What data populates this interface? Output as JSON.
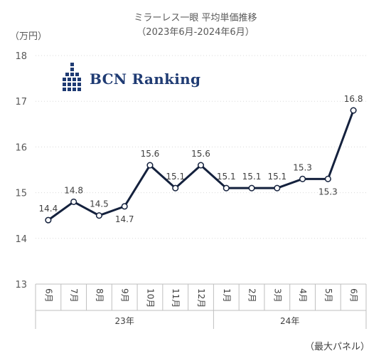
{
  "header": {
    "title": "ミラーレス一眼 平均単価推移",
    "subtitle": "（2023年6月-2024年6月）",
    "unit": "（万円）",
    "footnote": "（最大パネル）"
  },
  "logo": {
    "text": "BCN Ranking",
    "color": "#1f3b73"
  },
  "chart_data": {
    "type": "line",
    "categories": [
      "6月",
      "7月",
      "8月",
      "9月",
      "10月",
      "11月",
      "12月",
      "1月",
      "2月",
      "3月",
      "4月",
      "5月",
      "6月"
    ],
    "groups": [
      {
        "label": "23年",
        "start": 0,
        "end": 6
      },
      {
        "label": "24年",
        "start": 7,
        "end": 12
      }
    ],
    "series": [
      {
        "values": [
          14.4,
          14.8,
          14.5,
          14.7,
          15.6,
          15.1,
          15.6,
          15.1,
          15.1,
          15.1,
          15.3,
          15.3,
          16.8
        ]
      }
    ],
    "ylim": [
      13,
      18
    ],
    "yticks": [
      13,
      14,
      15,
      16,
      17,
      18
    ],
    "line_color": "#14213d",
    "grid": true,
    "legend": "none"
  }
}
